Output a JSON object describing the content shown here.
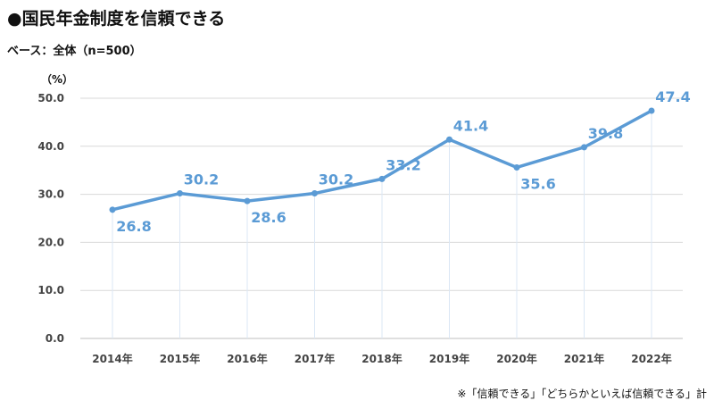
{
  "title": "●国民年金制度を信頼できる",
  "base_label": "ベース：全体（n=500）",
  "unit_label": "（%）",
  "footnote": "※「信頼できる」「どちらかといえば信頼できる」計",
  "colors": {
    "line": "#5b9bd5",
    "grid": "#d9d9d9",
    "dropline": "#dbe7f5",
    "label": "#5b9bd5"
  },
  "chart_data": {
    "type": "line",
    "categories": [
      "2014年",
      "2015年",
      "2016年",
      "2017年",
      "2018年",
      "2019年",
      "2020年",
      "2021年",
      "2022年"
    ],
    "series": [
      {
        "values": [
          26.8,
          30.2,
          28.6,
          30.2,
          33.2,
          41.4,
          35.6,
          39.8,
          47.4
        ]
      }
    ],
    "data_labels": [
      "26.8",
      "30.2",
      "28.6",
      "30.2",
      "33.2",
      "41.4",
      "35.6",
      "39.8",
      "47.4"
    ],
    "y_ticks": [
      "0.0",
      "10.0",
      "20.0",
      "30.0",
      "40.0",
      "50.0"
    ],
    "ylim": [
      0,
      50
    ],
    "grid": true,
    "drop_lines": true,
    "xlabel": "",
    "ylabel": ""
  }
}
